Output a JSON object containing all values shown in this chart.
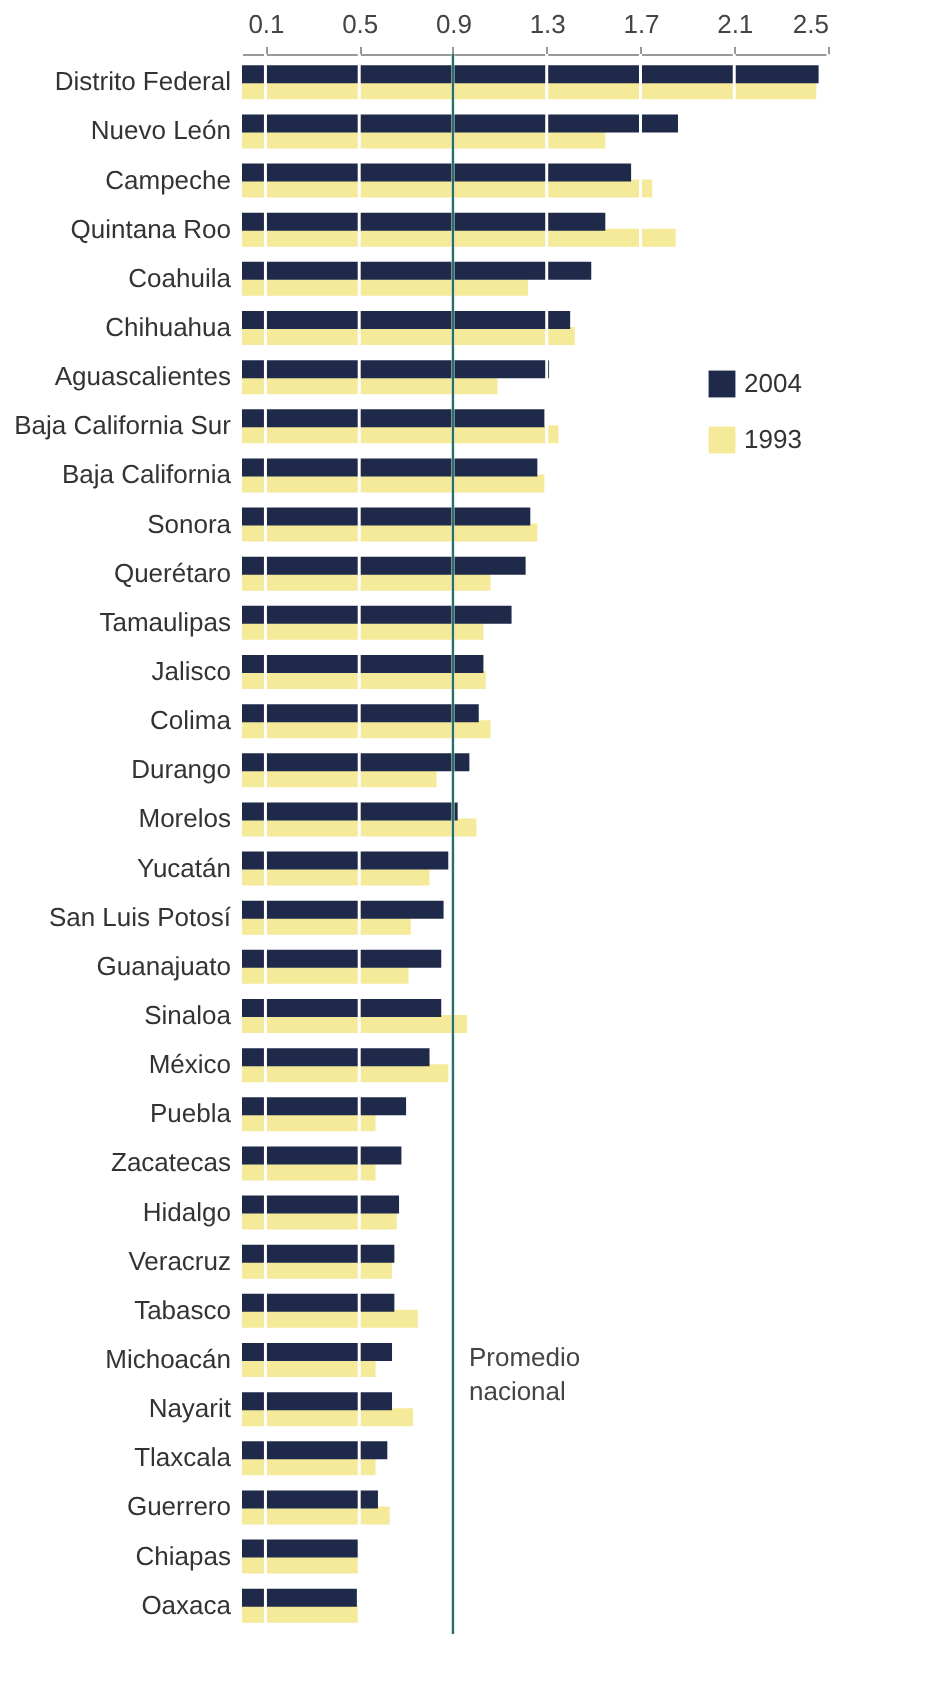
{
  "chart_data": {
    "type": "bar",
    "orientation": "horizontal",
    "categories": [
      "Distrito Federal",
      "Nuevo León",
      "Campeche",
      "Quintana Roo",
      "Coahuila",
      "Chihuahua",
      "Aguascalientes",
      "Baja California Sur",
      "Baja California",
      "Sonora",
      "Querétaro",
      "Tamaulipas",
      "Jalisco",
      "Colima",
      "Durango",
      "Morelos",
      "Yucatán",
      "San Luis Potosí",
      "Guanajuato",
      "Sinaloa",
      "México",
      "Puebla",
      "Zacatecas",
      "Hidalgo",
      "Veracruz",
      "Tabasco",
      "Michoacán",
      "Nayarit",
      "Tlaxcala",
      "Guerrero",
      "Chiapas",
      "Oaxaca"
    ],
    "series": [
      {
        "name": "2004",
        "color": "#1f2a4a",
        "values": [
          2.46,
          1.86,
          1.66,
          1.55,
          1.49,
          1.4,
          1.31,
          1.29,
          1.26,
          1.23,
          1.21,
          1.15,
          1.03,
          1.01,
          0.97,
          0.92,
          0.88,
          0.86,
          0.85,
          0.85,
          0.8,
          0.7,
          0.68,
          0.67,
          0.65,
          0.65,
          0.64,
          0.64,
          0.62,
          0.58,
          0.5,
          0.49
        ]
      },
      {
        "name": "1993",
        "color": "#f5e99a",
        "values": [
          2.45,
          1.55,
          1.75,
          1.85,
          1.22,
          1.42,
          1.09,
          1.35,
          1.29,
          1.26,
          1.06,
          1.03,
          1.04,
          1.06,
          0.83,
          1.0,
          0.8,
          0.72,
          0.71,
          0.96,
          0.88,
          0.57,
          0.57,
          0.66,
          0.64,
          0.75,
          0.57,
          0.73,
          0.57,
          0.63,
          0.5,
          0.5
        ]
      }
    ],
    "xlim": [
      0,
      2.5
    ],
    "xticks": [
      0.1,
      0.5,
      0.9,
      1.3,
      1.7,
      2.1,
      2.5
    ],
    "grid": "x",
    "legend": "right",
    "ref_lines": [
      {
        "axis": "x",
        "value": 0.9,
        "label": "Promedio nacional",
        "color": "#2a6f6a"
      }
    ]
  }
}
